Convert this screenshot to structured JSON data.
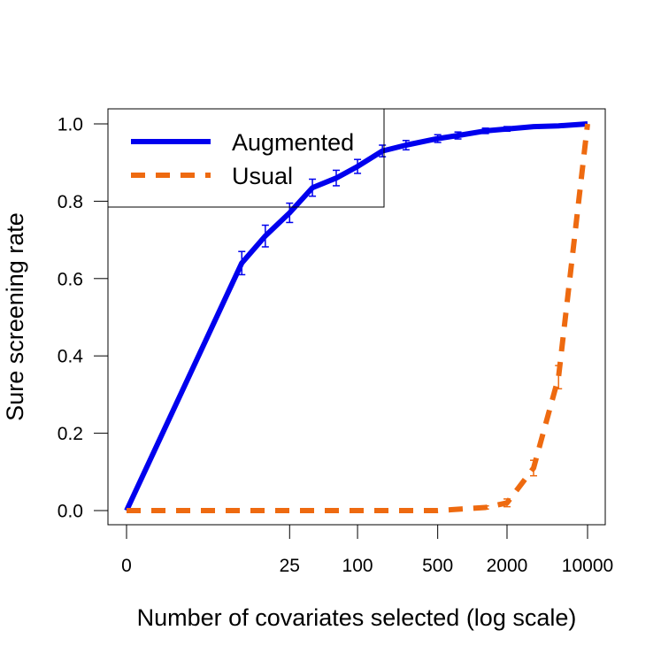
{
  "chart_data": {
    "type": "line",
    "title": "",
    "xlabel": "Number of covariates selected (log scale)",
    "ylabel": "Sure screening rate",
    "x_scale": "log",
    "x_ticks": [
      {
        "value": 0,
        "label": "0"
      },
      {
        "value": 25,
        "label": "25"
      },
      {
        "value": 100,
        "label": "100"
      },
      {
        "value": 500,
        "label": "500"
      },
      {
        "value": 2000,
        "label": "2000"
      },
      {
        "value": 10000,
        "label": "10000"
      }
    ],
    "y_ticks": [
      {
        "value": 0.0,
        "label": "0.0"
      },
      {
        "value": 0.2,
        "label": "0.2"
      },
      {
        "value": 0.4,
        "label": "0.4"
      },
      {
        "value": 0.6,
        "label": "0.6"
      },
      {
        "value": 0.8,
        "label": "0.8"
      },
      {
        "value": 1.0,
        "label": "1.0"
      }
    ],
    "ylim": [
      0,
      1
    ],
    "grid": false,
    "legend_position": "top-left",
    "series": [
      {
        "name": "Augmented",
        "color": "#0000ee",
        "style": "solid",
        "points": [
          {
            "x": 0,
            "y": 0.0,
            "err": 0.0
          },
          {
            "x": 9,
            "y": 0.64,
            "err": 0.03
          },
          {
            "x": 15,
            "y": 0.71,
            "err": 0.028
          },
          {
            "x": 25,
            "y": 0.77,
            "err": 0.025
          },
          {
            "x": 40,
            "y": 0.835,
            "err": 0.022
          },
          {
            "x": 65,
            "y": 0.86,
            "err": 0.02
          },
          {
            "x": 100,
            "y": 0.89,
            "err": 0.018
          },
          {
            "x": 165,
            "y": 0.93,
            "err": 0.015
          },
          {
            "x": 265,
            "y": 0.945,
            "err": 0.012
          },
          {
            "x": 500,
            "y": 0.962,
            "err": 0.01
          },
          {
            "x": 750,
            "y": 0.97,
            "err": 0.009
          },
          {
            "x": 1300,
            "y": 0.982,
            "err": 0.007
          },
          {
            "x": 2000,
            "y": 0.987,
            "err": 0.006
          },
          {
            "x": 3400,
            "y": 0.993,
            "err": 0.004
          },
          {
            "x": 5600,
            "y": 0.995,
            "err": 0.003
          },
          {
            "x": 10000,
            "y": 1.0,
            "err": 0.0
          }
        ]
      },
      {
        "name": "Usual",
        "color": "#ee6a10",
        "style": "dashed",
        "points": [
          {
            "x": 0,
            "y": 0.0,
            "err": 0.0
          },
          {
            "x": 9,
            "y": 0.0,
            "err": 0.0
          },
          {
            "x": 25,
            "y": 0.0,
            "err": 0.0
          },
          {
            "x": 100,
            "y": 0.0,
            "err": 0.0
          },
          {
            "x": 500,
            "y": 0.0,
            "err": 0.0
          },
          {
            "x": 1300,
            "y": 0.008,
            "err": 0.004
          },
          {
            "x": 2000,
            "y": 0.02,
            "err": 0.01
          },
          {
            "x": 3400,
            "y": 0.11,
            "err": 0.02
          },
          {
            "x": 5600,
            "y": 0.345,
            "err": 0.03
          },
          {
            "x": 10000,
            "y": 1.0,
            "err": 0.0
          }
        ]
      }
    ]
  }
}
